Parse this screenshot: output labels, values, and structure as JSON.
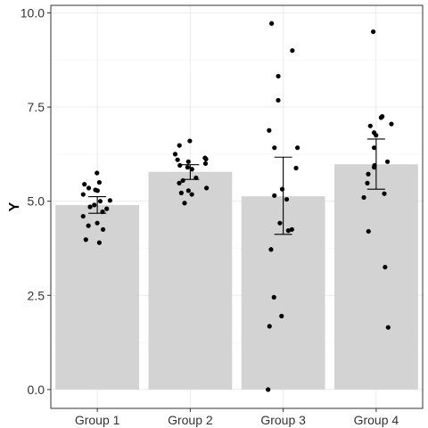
{
  "chart_data": {
    "type": "bar",
    "title": "",
    "xlabel": "",
    "ylabel": "Y",
    "ylim": [
      -0.5,
      10.2
    ],
    "yticks": [
      0.0,
      2.5,
      5.0,
      7.5,
      10.0
    ],
    "ytick_labels": [
      "0.0",
      "2.5",
      "5.0",
      "7.5",
      "10.0"
    ],
    "grid": true,
    "legend": "none",
    "categories": [
      "Group 1",
      "Group 2",
      "Group 3",
      "Group 4"
    ],
    "values": [
      4.9,
      5.78,
      5.13,
      5.98
    ],
    "error_bars": [
      {
        "low": 4.68,
        "high": 5.12
      },
      {
        "low": 5.58,
        "high": 5.97
      },
      {
        "low": 4.12,
        "high": 6.17
      },
      {
        "low": 5.32,
        "high": 6.65
      }
    ],
    "points": [
      [
        5.75,
        5.5,
        5.45,
        5.35,
        5.3,
        5.28,
        5.18,
        5.02,
        5.0,
        4.9,
        4.85,
        4.8,
        4.72,
        4.6,
        4.42,
        4.35,
        4.25,
        3.98,
        3.9
      ],
      [
        6.6,
        6.48,
        6.25,
        6.15,
        6.12,
        6.1,
        6.05,
        6.0,
        5.95,
        5.9,
        5.85,
        5.62,
        5.55,
        5.48,
        5.35,
        5.28,
        5.22,
        5.18,
        4.95
      ],
      [
        9.72,
        9.0,
        8.32,
        7.68,
        6.88,
        6.42,
        6.42,
        5.88,
        5.32,
        5.15,
        5.05,
        4.42,
        4.25,
        4.22,
        3.72,
        2.45,
        1.95,
        1.68,
        0.0
      ],
      [
        9.5,
        7.25,
        7.22,
        7.05,
        7.0,
        6.82,
        6.75,
        6.42,
        6.05,
        5.95,
        5.9,
        5.72,
        5.48,
        5.2,
        5.1,
        4.2,
        3.25,
        1.65
      ]
    ],
    "colors": {
      "bar_fill": "#d3d3d3",
      "point": "#000000",
      "error_bar": "#000000",
      "grid": "#ebebeb",
      "panel_border": "#333333"
    }
  }
}
